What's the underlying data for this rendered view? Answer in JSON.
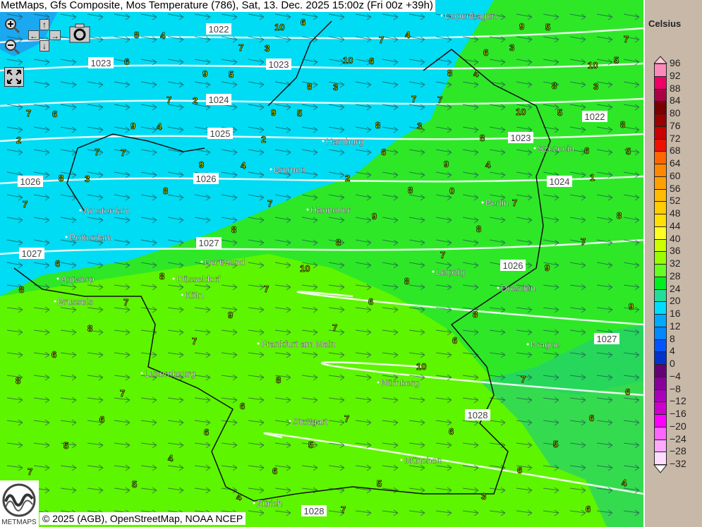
{
  "title": "MetMaps, Gfs Composite, Mos Temperature (786), Sat, 13. Dec. 2025 15:00z (Fri 00z +39h)",
  "controls": {
    "zoom_in": "zoom-in-icon",
    "zoom_out": "zoom-out-icon",
    "pan_up": "↑",
    "pan_left": "←",
    "pan_right": "→",
    "pan_down": "↓",
    "camera": "camera-icon",
    "fullscreen": "fullscreen-icon"
  },
  "cities": [
    "Copenhagen",
    "Hamburg",
    "Szczecin",
    "Bremen",
    "Amsterdam",
    "Hannover",
    "Berlin",
    "Rotterdam",
    "Dortmund",
    "Leipzig",
    "Antwerp",
    "Düsseldorf",
    "Dresden",
    "Brussels",
    "Köln",
    "Prague",
    "Frankfurt am Main",
    "Luxembourg",
    "Nürnberg",
    "Stuttgart",
    "München",
    "Zürich"
  ],
  "isobars": [
    "1022",
    "1023",
    "1023",
    "1024",
    "1025",
    "1026",
    "1026",
    "1027",
    "1027",
    "1022",
    "1023",
    "1024",
    "1026",
    "1027",
    "1028",
    "1028"
  ],
  "stations": [
    10,
    9,
    8,
    7,
    7,
    7,
    6,
    10,
    10,
    9,
    8,
    8,
    8,
    7,
    7,
    7,
    9,
    10,
    9,
    8,
    8,
    8,
    7,
    6,
    9,
    9,
    8,
    8,
    8,
    7,
    7,
    7,
    9,
    8,
    8,
    8,
    8,
    7,
    7,
    6,
    10,
    9,
    8,
    8,
    8,
    7,
    7,
    6,
    9,
    9,
    8,
    8,
    7,
    7,
    6,
    6,
    10,
    8,
    8,
    7,
    7,
    6,
    6,
    6,
    7,
    6,
    6,
    6,
    5,
    5,
    5,
    4,
    7,
    6,
    6,
    5,
    5,
    4,
    4,
    3,
    7,
    6,
    6,
    5,
    4,
    4,
    3,
    3,
    6,
    6,
    5,
    5,
    4,
    3,
    3,
    2,
    7,
    6,
    5,
    5,
    4,
    3,
    2,
    2,
    7,
    6,
    5,
    4,
    4,
    3,
    2,
    1,
    0
  ],
  "legend": {
    "title": "Celsius",
    "labels": [
      "96",
      "92",
      "88",
      "84",
      "80",
      "76",
      "72",
      "68",
      "64",
      "60",
      "56",
      "52",
      "48",
      "44",
      "40",
      "36",
      "32",
      "28",
      "24",
      "20",
      "16",
      "12",
      "8",
      "4",
      "0",
      "−4",
      "−8",
      "−12",
      "−16",
      "−20",
      "−24",
      "−28",
      "−32"
    ],
    "colors": [
      "#ff88bb",
      "#ee0066",
      "#aa0044",
      "#770000",
      "#990000",
      "#cc0000",
      "#ee1100",
      "#ff6600",
      "#ff8800",
      "#ffa000",
      "#ffbb00",
      "#ffcc00",
      "#ffe000",
      "#ffff22",
      "#ccff00",
      "#99ff00",
      "#66ff22",
      "#00ee22",
      "#22dd99",
      "#00ddff",
      "#00aaff",
      "#0088ff",
      "#0055ff",
      "#0033cc",
      "#660077",
      "#880099",
      "#aa00bb",
      "#cc00cc",
      "#ff00ff",
      "#ff66ff",
      "#ffaaff",
      "#ffddff"
    ],
    "top_arrow_color": "#ffccdd",
    "bottom_arrow_color": "#ffffff"
  },
  "credit": "© 2025 (AGB), OpenStreetMap, NOAA NCEP",
  "logo_text": "METMAPS"
}
